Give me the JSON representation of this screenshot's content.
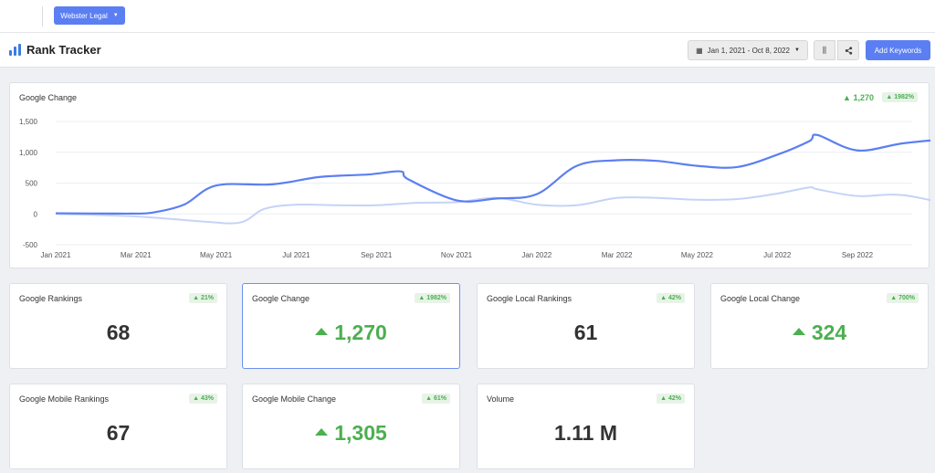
{
  "topbar": {
    "workspace_label": "Webster Legal"
  },
  "header": {
    "title": "Rank Tracker",
    "date_range": "Jan 1, 2021 - Oct 8, 2022",
    "add_keywords_label": "Add Keywords"
  },
  "chart": {
    "title": "Google Change",
    "change_value": "1,270",
    "change_badge": "1982%"
  },
  "chart_data": {
    "type": "line",
    "title": "Google Change",
    "xlabel": "",
    "ylabel": "",
    "ylim": [
      -500,
      1500
    ],
    "y_ticks": [
      "1,500",
      "1,000",
      "500",
      "0",
      "-500"
    ],
    "x_ticks": [
      "Jan 2021",
      "Mar 2021",
      "May 2021",
      "Jul 2021",
      "Sep 2021",
      "Nov 2021",
      "Jan 2022",
      "Mar 2022",
      "May 2022",
      "Jul 2022",
      "Sep 2022"
    ],
    "grid": true,
    "series": [
      {
        "color": "#5b7ff2",
        "x": [
          0,
          0.9,
          1.2,
          1.6,
          2.0,
          2.7,
          3.3,
          3.9,
          4.3,
          4.4,
          5.0,
          5.5,
          6.0,
          6.5,
          7.0,
          7.5,
          8.0,
          8.5,
          9.0,
          9.4,
          9.5,
          10.0,
          10.6,
          11.5
        ],
        "values": [
          10,
          5,
          20,
          150,
          460,
          480,
          600,
          640,
          690,
          560,
          220,
          250,
          320,
          780,
          870,
          860,
          780,
          760,
          960,
          1180,
          1280,
          1030,
          1150,
          1260
        ]
      },
      {
        "color": "#c5d3f6",
        "x": [
          0,
          1.0,
          1.8,
          2.3,
          2.6,
          3.0,
          3.5,
          4.0,
          4.5,
          5.0,
          5.5,
          6.0,
          6.5,
          7.0,
          7.5,
          8.0,
          8.5,
          9.0,
          9.4,
          9.5,
          10.0,
          10.6,
          11.5
        ],
        "values": [
          0,
          -40,
          -120,
          -140,
          80,
          150,
          140,
          140,
          180,
          190,
          260,
          150,
          140,
          260,
          260,
          230,
          240,
          330,
          430,
          400,
          290,
          300,
          40
        ]
      }
    ]
  },
  "cards": [
    {
      "title": "Google Rankings",
      "badge": "21%",
      "value": "68"
    },
    {
      "title": "Google Change",
      "badge": "1982%",
      "value": "1,270"
    },
    {
      "title": "Google Local Rankings",
      "badge": "42%",
      "value": "61"
    },
    {
      "title": "Google Local Change",
      "badge": "700%",
      "value": "324"
    },
    {
      "title": "Google Mobile Rankings",
      "badge": "43%",
      "value": "67"
    },
    {
      "title": "Google Mobile Change",
      "badge": "61%",
      "value": "1,305"
    },
    {
      "title": "Volume",
      "badge": "42%",
      "value": "1.11 M"
    }
  ]
}
